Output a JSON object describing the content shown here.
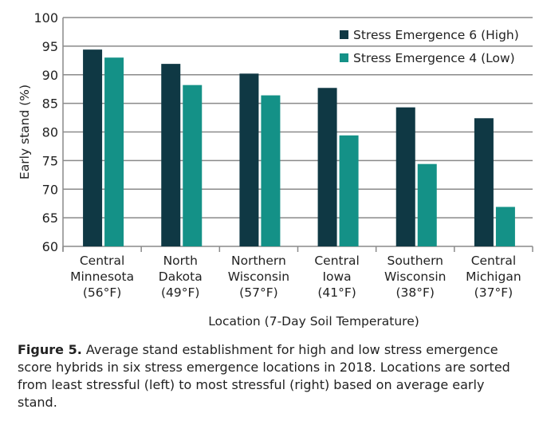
{
  "chart_data": {
    "type": "bar",
    "ylabel": "Early stand (%)",
    "xlabel": "Location (7-Day Soil Temperature)",
    "ylim": [
      60,
      100
    ],
    "yticks": [
      60,
      65,
      70,
      75,
      80,
      85,
      90,
      95,
      100
    ],
    "grid": true,
    "legend_placement": "top-right",
    "categories": [
      [
        "Central",
        "Minnesota",
        "(56°F)"
      ],
      [
        "North",
        "Dakota",
        "(49°F)"
      ],
      [
        "Northern",
        "Wisconsin",
        "(57°F)"
      ],
      [
        "Central",
        "Iowa",
        "(41°F)"
      ],
      [
        "Southern",
        "Wisconsin",
        "(38°F)"
      ],
      [
        "Central",
        "Michigan",
        "(37°F)"
      ]
    ],
    "series": [
      {
        "name": "Stress Emergence 6 (High)",
        "color": "#0f3844",
        "values": [
          94.4,
          91.9,
          90.2,
          87.7,
          84.3,
          82.4
        ]
      },
      {
        "name": "Stress Emergence 4 (Low)",
        "color": "#149187",
        "values": [
          93.0,
          88.2,
          86.4,
          79.4,
          74.4,
          66.9
        ]
      }
    ]
  },
  "caption": {
    "label": "Figure 5.",
    "text": " Average stand establishment for high and low stress emergence score hybrids in six stress emergence locations in 2018. Locations are sorted from least stressful (left) to most stressful (right) based on average early stand."
  }
}
